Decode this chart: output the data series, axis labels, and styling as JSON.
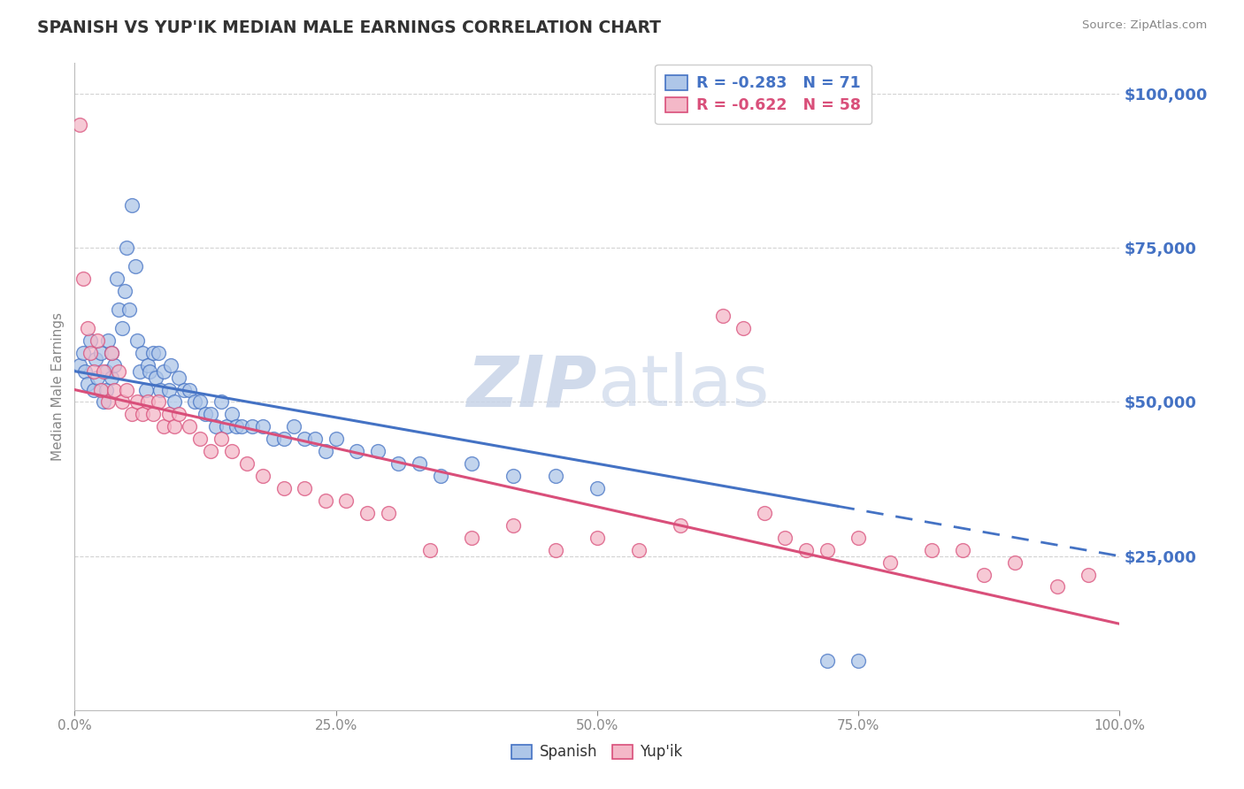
{
  "title": "SPANISH VS YUP'IK MEDIAN MALE EARNINGS CORRELATION CHART",
  "source": "Source: ZipAtlas.com",
  "ylabel": "Median Male Earnings",
  "xlim": [
    0,
    1.0
  ],
  "ylim": [
    0,
    105000
  ],
  "yticks": [
    25000,
    50000,
    75000,
    100000
  ],
  "ytick_labels": [
    "$25,000",
    "$50,000",
    "$75,000",
    "$100,000"
  ],
  "xticks": [
    0.0,
    0.25,
    0.5,
    0.75,
    1.0
  ],
  "xtick_labels": [
    "0.0%",
    "25.0%",
    "50.0%",
    "75.0%",
    "100.0%"
  ],
  "spanish_R": -0.283,
  "spanish_N": 71,
  "yupik_R": -0.622,
  "yupik_N": 58,
  "spanish_color": "#aec6e8",
  "yupik_color": "#f4b8c8",
  "line_blue": "#4472c4",
  "line_pink": "#d94f7a",
  "background_color": "#ffffff",
  "grid_color": "#c8c8c8",
  "title_color": "#4472c4",
  "axis_color": "#4472c4",
  "watermark_color": "#c8d4e8",
  "spanish_line_intercept": 55000,
  "spanish_line_slope": -30000,
  "yupik_line_intercept": 52000,
  "yupik_line_slope": -38000,
  "spanish_x": [
    0.005,
    0.008,
    0.01,
    0.012,
    0.015,
    0.018,
    0.02,
    0.022,
    0.025,
    0.028,
    0.03,
    0.03,
    0.032,
    0.035,
    0.035,
    0.038,
    0.04,
    0.042,
    0.045,
    0.048,
    0.05,
    0.052,
    0.055,
    0.058,
    0.06,
    0.062,
    0.065,
    0.068,
    0.07,
    0.072,
    0.075,
    0.078,
    0.08,
    0.082,
    0.085,
    0.09,
    0.092,
    0.095,
    0.1,
    0.105,
    0.11,
    0.115,
    0.12,
    0.125,
    0.13,
    0.135,
    0.14,
    0.145,
    0.15,
    0.155,
    0.16,
    0.17,
    0.18,
    0.19,
    0.2,
    0.21,
    0.22,
    0.23,
    0.24,
    0.25,
    0.27,
    0.29,
    0.31,
    0.33,
    0.35,
    0.38,
    0.42,
    0.46,
    0.5,
    0.72,
    0.75
  ],
  "spanish_y": [
    56000,
    58000,
    55000,
    53000,
    60000,
    52000,
    57000,
    54000,
    58000,
    50000,
    55000,
    52000,
    60000,
    58000,
    54000,
    56000,
    70000,
    65000,
    62000,
    68000,
    75000,
    65000,
    82000,
    72000,
    60000,
    55000,
    58000,
    52000,
    56000,
    55000,
    58000,
    54000,
    58000,
    52000,
    55000,
    52000,
    56000,
    50000,
    54000,
    52000,
    52000,
    50000,
    50000,
    48000,
    48000,
    46000,
    50000,
    46000,
    48000,
    46000,
    46000,
    46000,
    46000,
    44000,
    44000,
    46000,
    44000,
    44000,
    42000,
    44000,
    42000,
    42000,
    40000,
    40000,
    38000,
    40000,
    38000,
    38000,
    36000,
    8000,
    8000
  ],
  "yupik_x": [
    0.005,
    0.008,
    0.012,
    0.015,
    0.018,
    0.022,
    0.025,
    0.028,
    0.032,
    0.035,
    0.038,
    0.042,
    0.045,
    0.05,
    0.055,
    0.06,
    0.065,
    0.07,
    0.075,
    0.08,
    0.085,
    0.09,
    0.095,
    0.1,
    0.11,
    0.12,
    0.13,
    0.14,
    0.15,
    0.165,
    0.18,
    0.2,
    0.22,
    0.24,
    0.26,
    0.28,
    0.3,
    0.34,
    0.38,
    0.42,
    0.46,
    0.5,
    0.54,
    0.58,
    0.62,
    0.64,
    0.66,
    0.68,
    0.7,
    0.72,
    0.75,
    0.78,
    0.82,
    0.85,
    0.87,
    0.9,
    0.94,
    0.97
  ],
  "yupik_y": [
    95000,
    70000,
    62000,
    58000,
    55000,
    60000,
    52000,
    55000,
    50000,
    58000,
    52000,
    55000,
    50000,
    52000,
    48000,
    50000,
    48000,
    50000,
    48000,
    50000,
    46000,
    48000,
    46000,
    48000,
    46000,
    44000,
    42000,
    44000,
    42000,
    40000,
    38000,
    36000,
    36000,
    34000,
    34000,
    32000,
    32000,
    26000,
    28000,
    30000,
    26000,
    28000,
    26000,
    30000,
    64000,
    62000,
    32000,
    28000,
    26000,
    26000,
    28000,
    24000,
    26000,
    26000,
    22000,
    24000,
    20000,
    22000
  ]
}
